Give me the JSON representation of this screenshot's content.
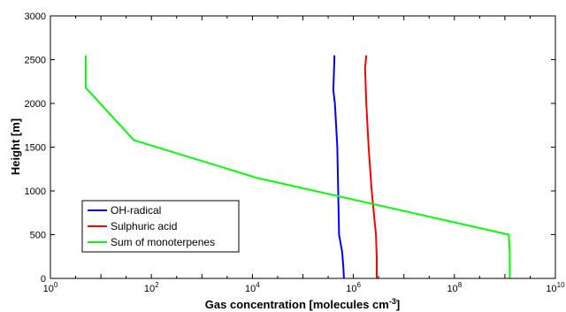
{
  "chart_data": {
    "type": "line",
    "xlabel": "Gas concentration [molecules cm",
    "xlabel_sup": "-3",
    "xlabel_end": "]",
    "ylabel": "Height [m]",
    "xscale": "log",
    "xlim": [
      1,
      10000000000
    ],
    "ylim": [
      0,
      3000
    ],
    "x_ticks": [
      1,
      100,
      10000,
      1000000,
      100000000,
      10000000000
    ],
    "x_tick_labels": [
      {
        "base": "10",
        "exp": "0"
      },
      {
        "base": "10",
        "exp": "2"
      },
      {
        "base": "10",
        "exp": "4"
      },
      {
        "base": "10",
        "exp": "6"
      },
      {
        "base": "10",
        "exp": "8"
      },
      {
        "base": "10",
        "exp": "10"
      }
    ],
    "y_ticks": [
      0,
      500,
      1000,
      1500,
      2000,
      2500,
      3000
    ],
    "grid": false,
    "legend_position": "bottom-left",
    "series": [
      {
        "name": "OH-radical",
        "color": "#0000ff",
        "points": [
          [
            650000,
            0
          ],
          [
            630000,
            150
          ],
          [
            600000,
            300
          ],
          [
            520000,
            500
          ],
          [
            500000,
            1000
          ],
          [
            480000,
            1500
          ],
          [
            430000,
            2000
          ],
          [
            400000,
            2150
          ],
          [
            420000,
            2500
          ],
          [
            420000,
            2550
          ]
        ]
      },
      {
        "name": "Sulphuric acid",
        "color": "#ff0000",
        "points": [
          [
            2900000,
            0
          ],
          [
            2900000,
            250
          ],
          [
            2800000,
            500
          ],
          [
            2300000,
            1000
          ],
          [
            2000000,
            1500
          ],
          [
            1800000,
            2000
          ],
          [
            1700000,
            2400
          ],
          [
            1800000,
            2550
          ]
        ]
      },
      {
        "name": "Sum of monoterpenes",
        "color": "#00ff00",
        "points": [
          [
            1250000000,
            0
          ],
          [
            1250000000,
            300
          ],
          [
            1200000000,
            500
          ],
          [
            12000,
            1150
          ],
          [
            45,
            1580
          ],
          [
            5,
            2180
          ],
          [
            5,
            2550
          ]
        ]
      }
    ]
  }
}
